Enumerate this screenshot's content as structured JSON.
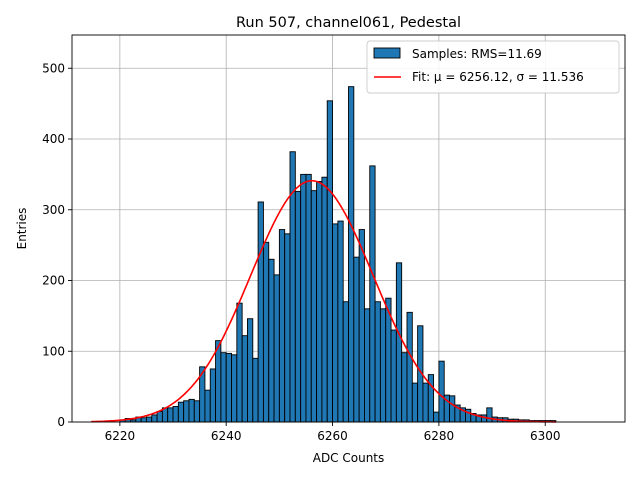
{
  "chart_data": {
    "type": "bar",
    "title": "Run 507, channel061, Pedestal",
    "xlabel": "ADC Counts",
    "ylabel": "Entries",
    "xlim": [
      6211,
      6315
    ],
    "ylim": [
      0,
      547
    ],
    "xticks": [
      6220,
      6240,
      6260,
      6280,
      6300
    ],
    "yticks": [
      0,
      100,
      200,
      300,
      400,
      500
    ],
    "grid": true,
    "legend_position": "top-right",
    "bar_color": "#1f77b4",
    "bar_edge_color": "#000000",
    "fit_color": "#ff0000",
    "bin_width": 1,
    "histogram": {
      "series_name": "Samples: RMS=11.69",
      "bins_start": [
        6220,
        6221,
        6222,
        6223,
        6224,
        6225,
        6226,
        6227,
        6228,
        6229,
        6230,
        6231,
        6232,
        6233,
        6234,
        6235,
        6236,
        6237,
        6238,
        6239,
        6240,
        6241,
        6242,
        6243,
        6244,
        6245,
        6246,
        6247,
        6248,
        6249,
        6250,
        6251,
        6252,
        6253,
        6254,
        6255,
        6256,
        6257,
        6258,
        6259,
        6260,
        6261,
        6262,
        6263,
        6264,
        6265,
        6266,
        6267,
        6268,
        6269,
        6270,
        6271,
        6272,
        6273,
        6274,
        6275,
        6276,
        6277,
        6278,
        6279,
        6280,
        6281,
        6282,
        6283,
        6284,
        6285,
        6286,
        6287,
        6288,
        6289,
        6290,
        6291,
        6292,
        6293,
        6294,
        6295,
        6296,
        6297,
        6298,
        6299,
        6300,
        6301
      ],
      "counts": [
        3,
        5,
        3,
        7,
        6,
        7,
        10,
        15,
        20,
        20,
        22,
        28,
        30,
        32,
        30,
        78,
        45,
        75,
        115,
        98,
        97,
        95,
        168,
        122,
        146,
        90,
        311,
        254,
        230,
        208,
        272,
        266,
        382,
        326,
        350,
        350,
        327,
        340,
        346,
        454,
        280,
        284,
        170,
        474,
        233,
        272,
        160,
        362,
        170,
        160,
        175,
        130,
        225,
        98,
        155,
        55,
        136,
        55,
        67,
        14,
        86,
        38,
        37,
        24,
        20,
        18,
        12,
        10,
        10,
        20,
        7,
        6,
        6,
        4,
        4,
        3,
        3,
        2,
        2,
        2,
        2,
        2
      ]
    },
    "fit": {
      "label": "Fit: μ = 6256.12, σ = 11.536",
      "mu": 6256.12,
      "sigma": 11.536,
      "amplitude": 341,
      "x_range": [
        6214.6,
        6302
      ]
    }
  }
}
